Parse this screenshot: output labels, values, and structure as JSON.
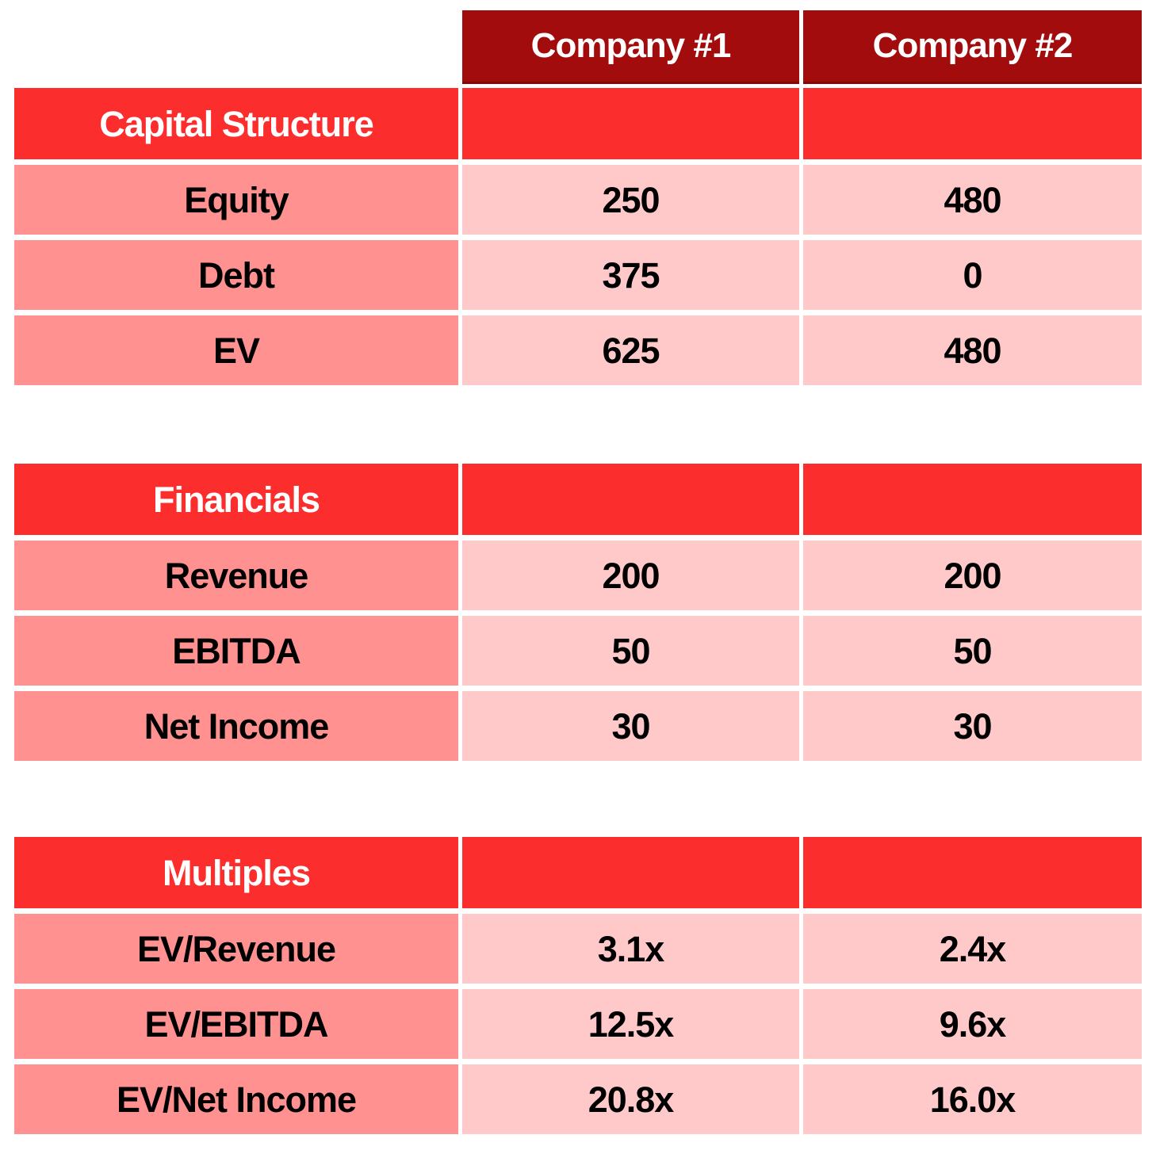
{
  "columns": [
    "Company #1",
    "Company #2"
  ],
  "tables": [
    {
      "section": "Capital Structure",
      "rows": [
        {
          "label": "Equity",
          "values": [
            "250",
            "480"
          ]
        },
        {
          "label": "Debt",
          "values": [
            "375",
            "0"
          ]
        },
        {
          "label": "EV",
          "values": [
            "625",
            "480"
          ]
        }
      ]
    },
    {
      "section": "Financials",
      "rows": [
        {
          "label": "Revenue",
          "values": [
            "200",
            "200"
          ]
        },
        {
          "label": "EBITDA",
          "values": [
            "50",
            "50"
          ]
        },
        {
          "label": "Net Income",
          "values": [
            "30",
            "30"
          ]
        }
      ]
    },
    {
      "section": "Multiples",
      "rows": [
        {
          "label": "EV/Revenue",
          "values": [
            "3.1x",
            "2.4x"
          ]
        },
        {
          "label": "EV/EBITDA",
          "values": [
            "12.5x",
            "9.6x"
          ]
        },
        {
          "label": "EV/Net Income",
          "values": [
            "20.8x",
            "16.0x"
          ]
        }
      ]
    }
  ],
  "colors": {
    "company_header_bg": "#A30C0C",
    "section_header_bg": "#FC2D2D",
    "row_label_bg": "#FF9191",
    "value_cell_bg": "#FFC9C9",
    "header_text": "#ffffff",
    "cell_text": "#000000"
  }
}
